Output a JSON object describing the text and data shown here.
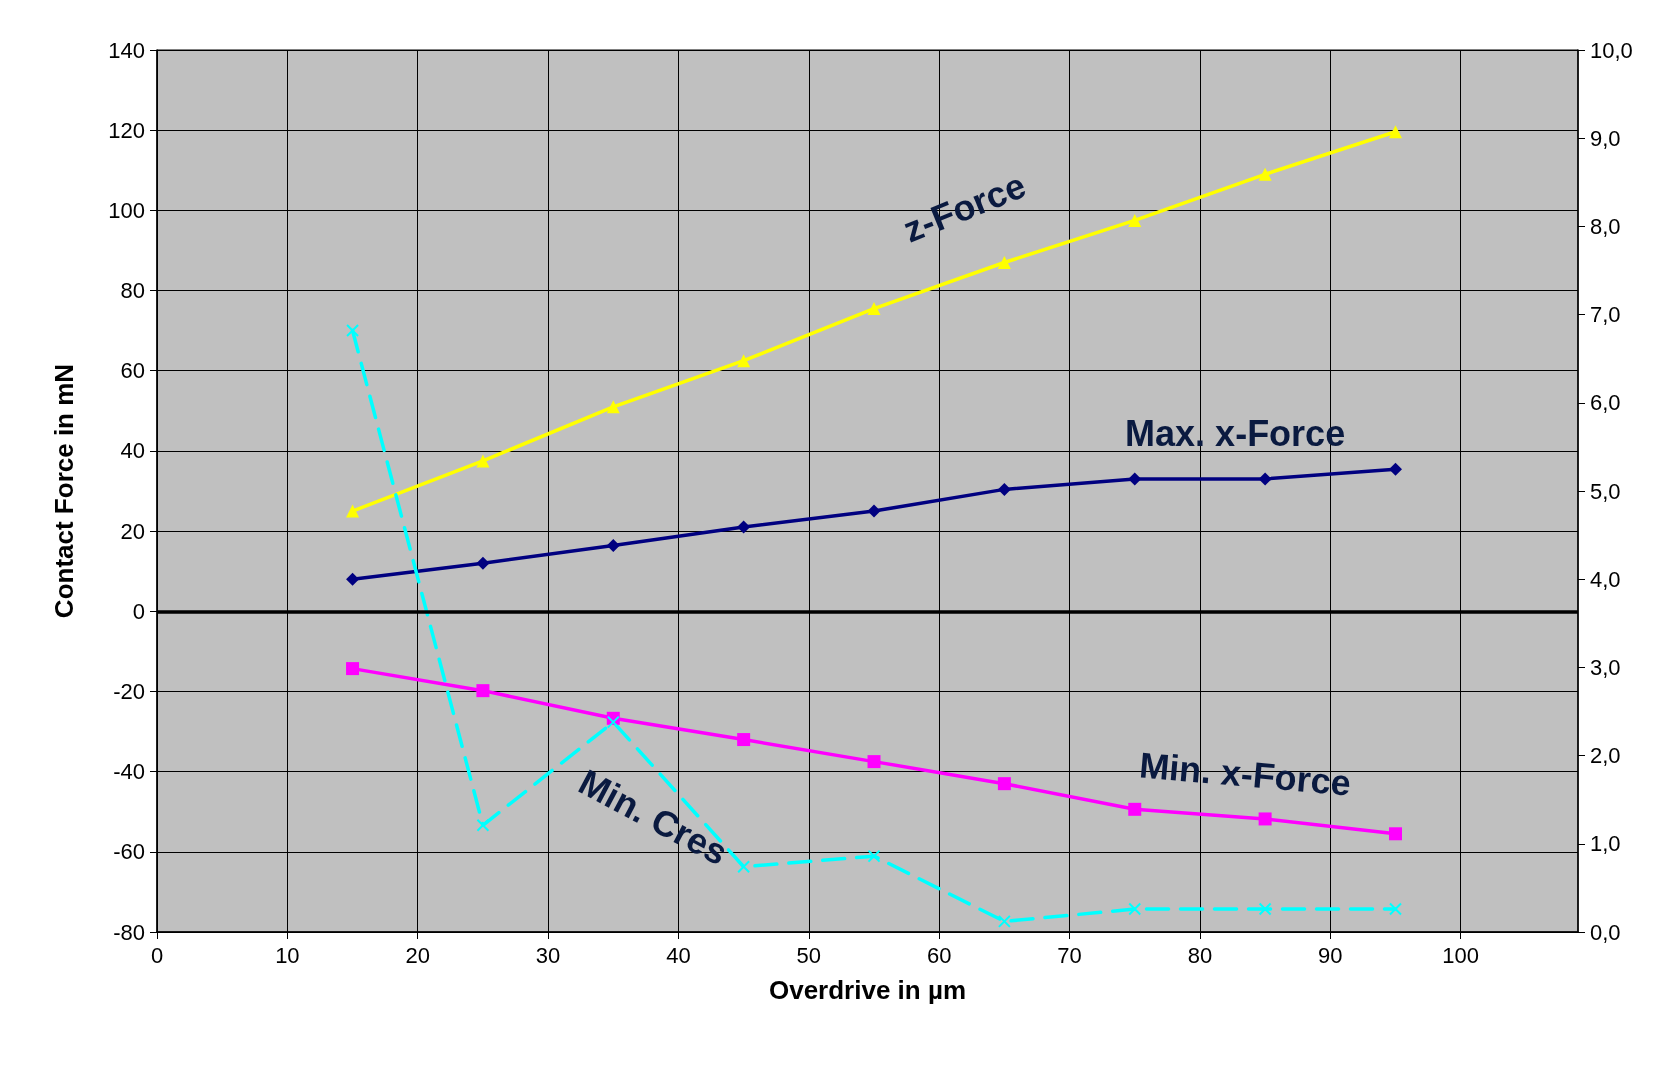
{
  "chart_data": {
    "type": "line",
    "xlabel": "Overdrive in µm",
    "ylabel": "Contact Force in mN",
    "x": [
      15,
      25,
      35,
      45,
      55,
      65,
      75,
      85,
      95
    ],
    "series": [
      {
        "name": "z-Force",
        "color": "#ffff00",
        "marker": "triangle",
        "values": [
          25,
          37.5,
          51,
          62.5,
          75.5,
          87,
          97.5,
          109,
          119.6
        ]
      },
      {
        "name": "Max. x-Force",
        "color": "#000080",
        "marker": "diamond",
        "values": [
          8,
          12,
          16.4,
          21,
          25,
          30.4,
          33,
          33,
          35.4
        ]
      },
      {
        "name": "Min. x-Force",
        "color": "#ff00ff",
        "marker": "square",
        "values": [
          -14.3,
          -19.8,
          -26.7,
          -32,
          -37.5,
          -43,
          -49.4,
          -51.8,
          -55.5
        ]
      },
      {
        "name": "Min. Cres",
        "color": "#00ffff",
        "marker": "cross",
        "line_style": "dashed",
        "axis": "y2",
        "values": [
          6.82,
          1.21,
          2.38,
          0.74,
          0.86,
          0.12,
          0.26,
          0.26,
          0.26
        ]
      }
    ],
    "xlim": [
      0,
      109
    ],
    "xticks": [
      0,
      10,
      20,
      30,
      40,
      50,
      60,
      70,
      80,
      90,
      100
    ],
    "ylim": [
      -80,
      140
    ],
    "yticks": [
      -80,
      -60,
      -40,
      -20,
      0,
      20,
      40,
      60,
      80,
      100,
      120,
      140
    ],
    "y2lim": [
      0,
      10
    ],
    "y2ticks": [
      {
        "value": 0,
        "label": "0,0"
      },
      {
        "value": 1,
        "label": "1,0"
      },
      {
        "value": 2,
        "label": "2,0"
      },
      {
        "value": 3,
        "label": "3,0"
      },
      {
        "value": 4,
        "label": "4,0"
      },
      {
        "value": 5,
        "label": "5,0"
      },
      {
        "value": 6,
        "label": "6,0"
      },
      {
        "value": 7,
        "label": "7,0"
      },
      {
        "value": 8,
        "label": "8,0"
      },
      {
        "value": 9,
        "label": "9,0"
      },
      {
        "value": 10,
        "label": "10,0"
      }
    ],
    "ref_lines": [
      {
        "axis": "y",
        "value": 0,
        "color": "#000000"
      }
    ],
    "grid": true,
    "legend": false
  }
}
